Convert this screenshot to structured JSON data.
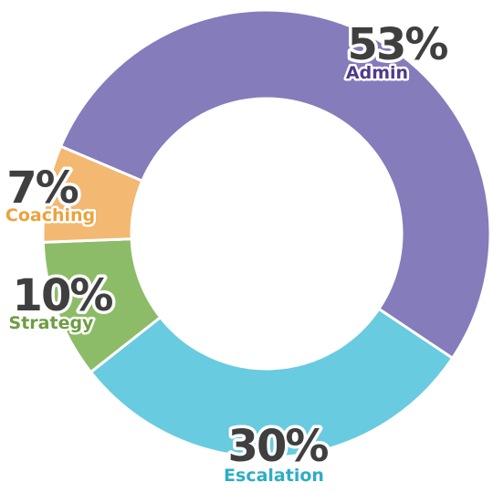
{
  "chart_data": {
    "type": "pie",
    "donut": true,
    "start_angle_deg": 293,
    "direction": "clockwise",
    "slices": [
      {
        "label": "Admin",
        "percent_label": "53%",
        "value": 53,
        "color": "#857cbb",
        "label_color": "#4f3a8c"
      },
      {
        "label": "Escalation",
        "percent_label": "30%",
        "value": 30,
        "color": "#68cbe0",
        "label_color": "#2eadc6"
      },
      {
        "label": "Strategy",
        "percent_label": "10%",
        "value": 10,
        "color": "#8dbc68",
        "label_color": "#6f9c44"
      },
      {
        "label": "Coaching",
        "percent_label": "7%",
        "value": 7,
        "color": "#f3b872",
        "label_color": "#eca23d"
      }
    ]
  }
}
